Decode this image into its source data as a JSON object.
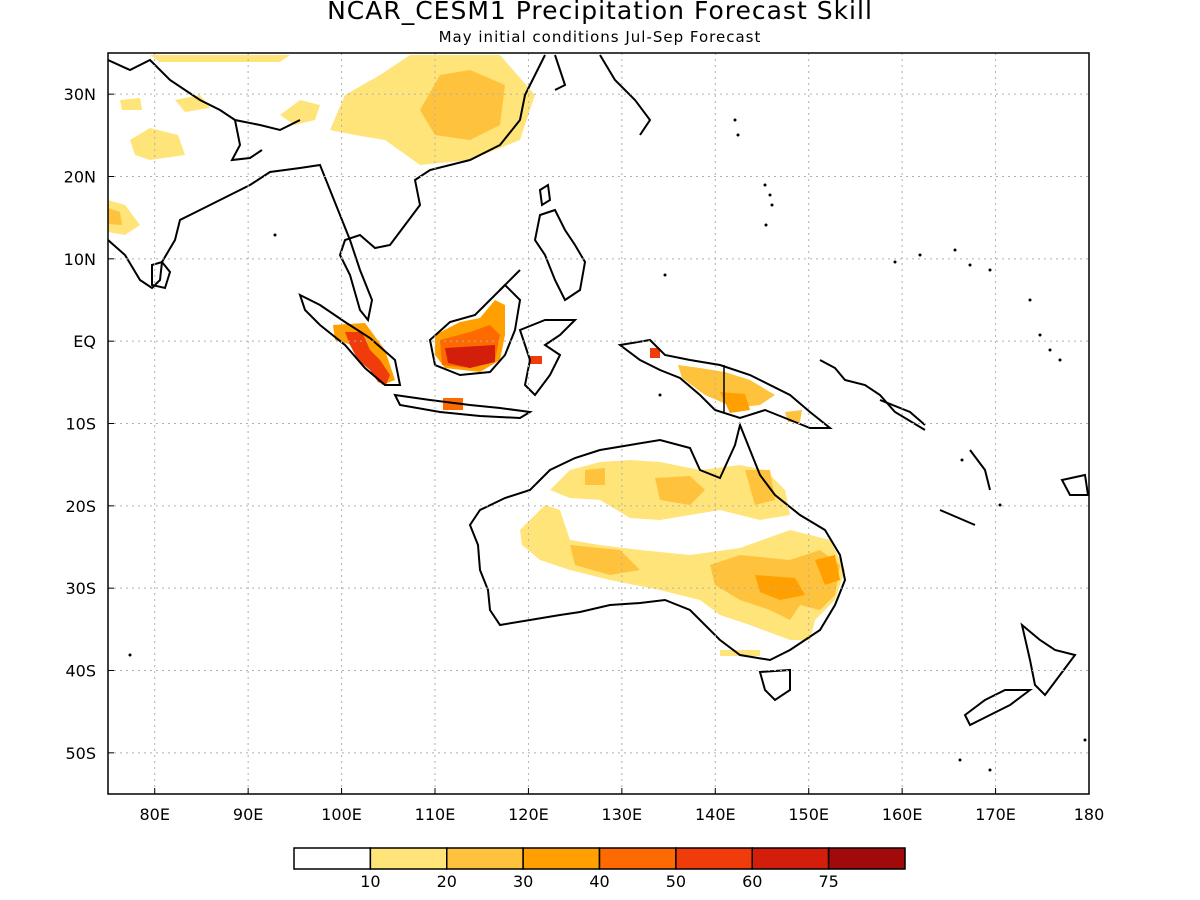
{
  "title": "NCAR_CESM1 Precipitation Forecast Skill",
  "subtitle": "May initial conditions  Jul-Sep Forecast",
  "map": {
    "lon_range": [
      75,
      180
    ],
    "lat_range": [
      -55,
      35
    ],
    "lat_ticks": [
      {
        "value": 30,
        "label": "30N"
      },
      {
        "value": 20,
        "label": "20N"
      },
      {
        "value": 10,
        "label": "10N"
      },
      {
        "value": 0,
        "label": "EQ"
      },
      {
        "value": -10,
        "label": "10S"
      },
      {
        "value": -20,
        "label": "20S"
      },
      {
        "value": -30,
        "label": "30S"
      },
      {
        "value": -40,
        "label": "40S"
      },
      {
        "value": -50,
        "label": "50S"
      }
    ],
    "lon_ticks": [
      {
        "value": 80,
        "label": "80E"
      },
      {
        "value": 90,
        "label": "90E"
      },
      {
        "value": 100,
        "label": "100E"
      },
      {
        "value": 110,
        "label": "110E"
      },
      {
        "value": 120,
        "label": "120E"
      },
      {
        "value": 130,
        "label": "130E"
      },
      {
        "value": 140,
        "label": "140E"
      },
      {
        "value": 150,
        "label": "150E"
      },
      {
        "value": 160,
        "label": "160E"
      },
      {
        "value": 170,
        "label": "170E"
      },
      {
        "value": 180,
        "label": "180"
      }
    ]
  },
  "colorbar": {
    "labels": [
      "10",
      "20",
      "30",
      "40",
      "50",
      "60",
      "75"
    ],
    "colors": [
      "#ffffff",
      "#ffe47a",
      "#ffc23c",
      "#ffa000",
      "#ff6a00",
      "#f03c0a",
      "#d21e0a",
      "#a00a0a"
    ]
  }
}
